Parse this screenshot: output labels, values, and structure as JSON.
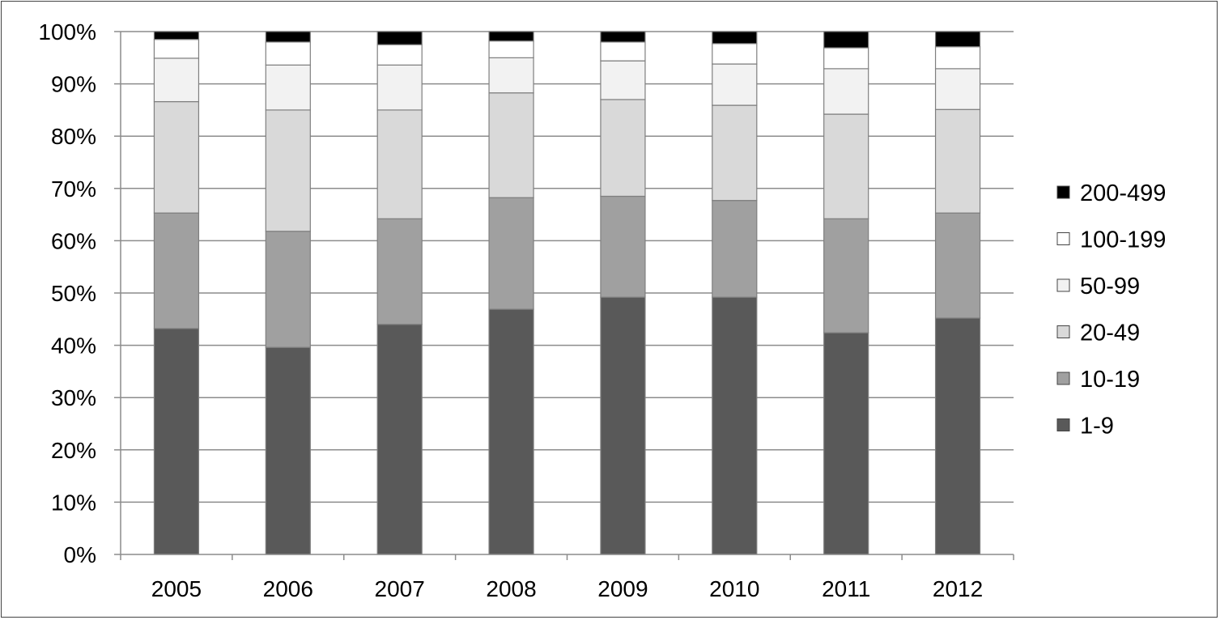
{
  "chart_data": {
    "type": "bar",
    "stacked": true,
    "percent_stacked": true,
    "categories": [
      "2005",
      "2006",
      "2007",
      "2008",
      "2009",
      "2010",
      "2011",
      "2012"
    ],
    "series": [
      {
        "name": " 1-9",
        "color": "#595959",
        "values": [
          43.2,
          39.6,
          44.0,
          46.8,
          49.2,
          49.2,
          42.4,
          45.2
        ]
      },
      {
        "name": "10-19",
        "color": "#a0a0a0",
        "values": [
          22.1,
          22.2,
          20.2,
          21.3,
          19.3,
          18.5,
          21.8,
          20.1
        ]
      },
      {
        "name": "20-49",
        "color": "#d9d9d9",
        "values": [
          21.3,
          23.2,
          20.8,
          20.0,
          18.5,
          18.2,
          20.0,
          19.8
        ]
      },
      {
        "name": "50-99",
        "color": "#f2f2f2",
        "values": [
          8.3,
          8.6,
          8.6,
          6.7,
          7.4,
          7.9,
          8.7,
          7.8
        ]
      },
      {
        "name": "100-199",
        "color": "#ffffff",
        "values": [
          3.6,
          4.4,
          3.9,
          3.2,
          3.6,
          3.9,
          4.0,
          4.2
        ]
      },
      {
        "name": "200-499",
        "color": "#000000",
        "values": [
          1.5,
          2.0,
          2.5,
          1.8,
          2.0,
          2.3,
          3.1,
          2.9
        ]
      }
    ],
    "y_ticks": [
      "0%",
      "10%",
      "20%",
      "30%",
      "40%",
      "50%",
      "60%",
      "70%",
      "80%",
      "90%",
      "100%"
    ],
    "ylim": [
      0,
      100
    ],
    "grid": true,
    "legend_position": "right",
    "legend_order": [
      "200-499",
      "100-199",
      "50-99",
      "20-49",
      "10-19",
      " 1-9"
    ],
    "title": "",
    "xlabel": "",
    "ylabel": ""
  }
}
